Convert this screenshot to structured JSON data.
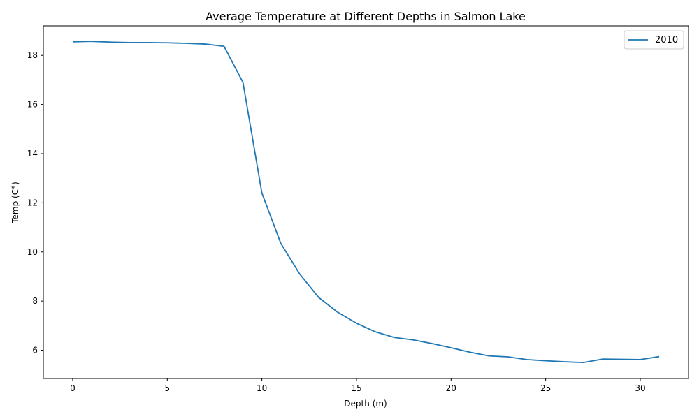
{
  "chart_data": {
    "type": "line",
    "title": "Average Temperature at Different Depths in Salmon Lake",
    "xlabel": "Depth (m)",
    "ylabel": "Temp (C°)",
    "xlim": [
      -1.55,
      32.55
    ],
    "ylim": [
      4.85,
      19.2
    ],
    "xticks": [
      0,
      5,
      10,
      15,
      20,
      25,
      30
    ],
    "yticks": [
      6,
      8,
      10,
      12,
      14,
      16,
      18
    ],
    "grid": false,
    "legend_position": "top-right",
    "series": [
      {
        "name": "2010",
        "color": "#1f77b4",
        "x": [
          0,
          1,
          2,
          3,
          4,
          5,
          6,
          7,
          8,
          9,
          10,
          11,
          12,
          13,
          14,
          15,
          16,
          17,
          18,
          19,
          20,
          21,
          22,
          23,
          24,
          25,
          26,
          27,
          28,
          29,
          30,
          31
        ],
        "y": [
          18.55,
          18.57,
          18.54,
          18.52,
          18.52,
          18.51,
          18.49,
          18.46,
          18.37,
          16.9,
          12.4,
          10.35,
          9.1,
          8.15,
          7.55,
          7.1,
          6.75,
          6.52,
          6.42,
          6.27,
          6.1,
          5.92,
          5.77,
          5.73,
          5.62,
          5.57,
          5.53,
          5.5,
          5.64,
          5.63,
          5.62,
          5.74
        ]
      }
    ]
  }
}
